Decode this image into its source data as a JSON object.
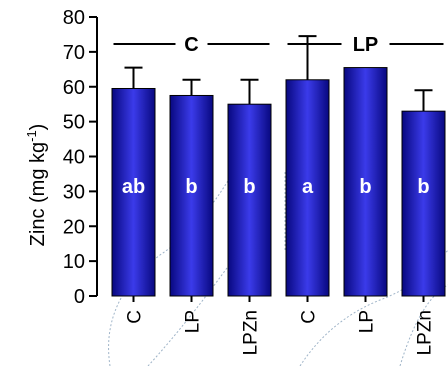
{
  "chart_data": {
    "type": "bar",
    "ylabel": "Zinc (mg kg",
    "ylabel_superscript": "-1",
    "ylabel_close": ")",
    "ylim": [
      0,
      80
    ],
    "yticks": [
      0,
      10,
      20,
      30,
      40,
      50,
      60,
      70,
      80
    ],
    "categories": [
      "C",
      "LP",
      "LPZn",
      "C",
      "LP",
      "LPZn"
    ],
    "values": [
      59.5,
      57.5,
      55,
      62,
      65.5,
      53
    ],
    "error": [
      6,
      4.5,
      7,
      12.5,
      0,
      6
    ],
    "bar_labels": [
      "ab",
      "b",
      "b",
      "a",
      "b",
      "b"
    ],
    "groups": [
      {
        "label": "C",
        "from": 0,
        "to": 2
      },
      {
        "label": "LP",
        "from": 3,
        "to": 5
      }
    ],
    "colors": {
      "bar_center": "#3b3bea",
      "bar_edge": "#080880"
    }
  }
}
